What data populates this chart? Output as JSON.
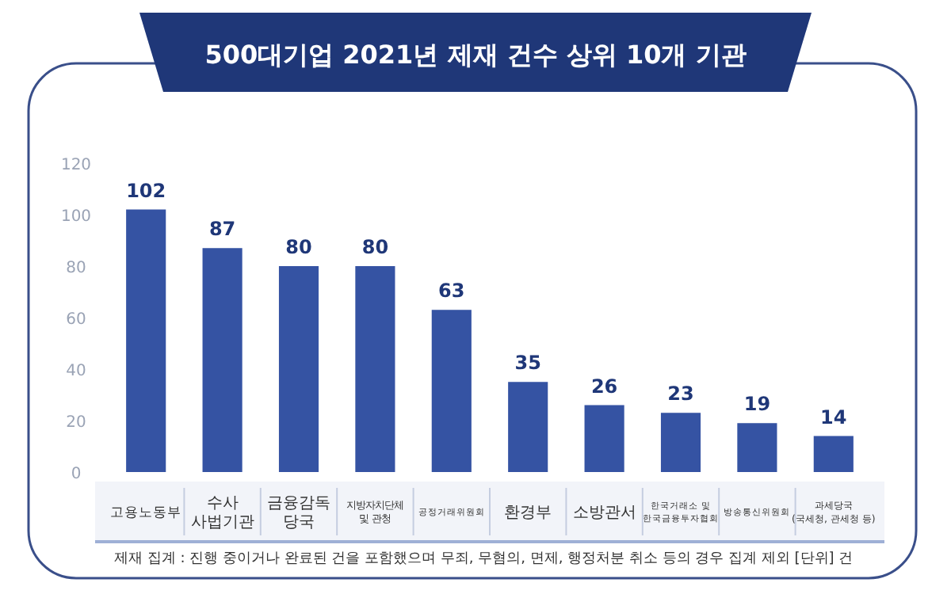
{
  "chart_data": {
    "type": "bar",
    "title": "500대기업 2021년 제재 건수 상위 10개 기관",
    "categories": [
      "고용노동부",
      "수사\n사법기관",
      "금융감독\n당국",
      "지방자치단체\n및 관청",
      "공정거래위원회",
      "환경부",
      "소방관서",
      "한국거래소 및\n한국금융투자협회",
      "방송통신위원회",
      "과세당국\n(국세청, 관세청 등)"
    ],
    "values": [
      102,
      87,
      80,
      80,
      63,
      35,
      26,
      23,
      19,
      14
    ],
    "color": "#3553a3",
    "ylim": [
      0,
      120
    ],
    "yticks": [
      0,
      20,
      40,
      60,
      80,
      100,
      120
    ],
    "grid": false,
    "data_labels": true,
    "annotations": [
      "제재 집계 : 진행 중이거나 완료된 건을 포함했으며 무죄, 무혐의, 면제, 행정처분 취소 등의 경우 집계 제외  [단위] 건"
    ]
  }
}
